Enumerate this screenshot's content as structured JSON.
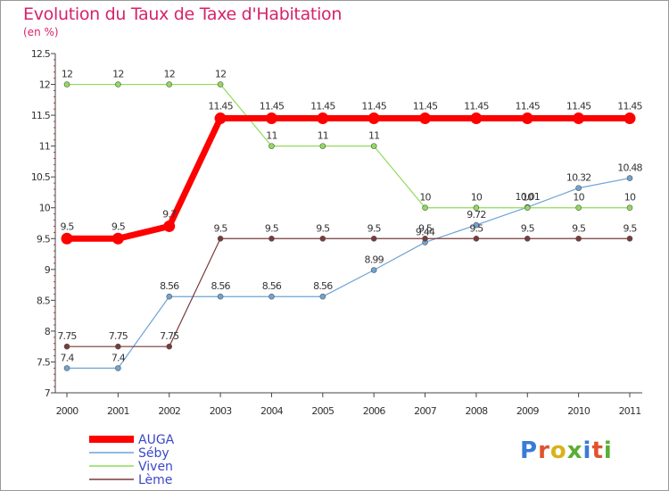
{
  "title": "Evolution du Taux de Taxe d'Habitation",
  "unit": "(en %)",
  "logo": {
    "text": "Proxiti",
    "colors": [
      "#3a7ad8",
      "#e0532d",
      "#d9b21a",
      "#5aae34",
      "#3a7ad8",
      "#e0532d",
      "#5aae34"
    ]
  },
  "chart_data": {
    "type": "line",
    "title": "Evolution du Taux de Taxe d'Habitation",
    "ylabel": "(en %)",
    "xlabel": "",
    "x": [
      "2000",
      "2001",
      "2002",
      "2003",
      "2004",
      "2005",
      "2006",
      "2007",
      "2008",
      "2009",
      "2010",
      "2011"
    ],
    "ylim": [
      7,
      12.5
    ],
    "yticks": [
      "7",
      "7.5",
      "8",
      "8.5",
      "9",
      "9.5",
      "10",
      "10.5",
      "11",
      "11.5",
      "12",
      "12.5"
    ],
    "grid": false,
    "legend": "bottom-left",
    "series": [
      {
        "name": "AUGA",
        "color": "#ff0000",
        "values": [
          9.5,
          9.5,
          9.7,
          11.45,
          11.45,
          11.45,
          11.45,
          11.45,
          11.45,
          11.45,
          11.45,
          11.45
        ],
        "labels": [
          "9.5",
          "9.5",
          "9.7",
          "11.45",
          "11.45",
          "11.45",
          "11.45",
          "11.45",
          "11.45",
          "11.45",
          "11.45",
          "11.45"
        ]
      },
      {
        "name": "Séby",
        "color": "#6fa3d3",
        "values": [
          7.4,
          7.4,
          8.56,
          8.56,
          8.56,
          8.56,
          8.99,
          9.44,
          9.72,
          10.01,
          10.32,
          10.48
        ],
        "labels": [
          "7.4",
          "7.4",
          "8.56",
          "8.56",
          "8.56",
          "8.56",
          "8.99",
          "9.44",
          "9.72",
          "10.01",
          "10.32",
          "10.48"
        ]
      },
      {
        "name": "Viven",
        "color": "#8fdc5a",
        "values": [
          12,
          12,
          12,
          12,
          11,
          11,
          11,
          10,
          10,
          10,
          10,
          10
        ],
        "labels": [
          "12",
          "12",
          "12",
          "12",
          "11",
          "11",
          "11",
          "10",
          "10",
          "10",
          "10",
          "10"
        ]
      },
      {
        "name": "Lème",
        "color": "#7a3a3a",
        "values": [
          7.75,
          7.75,
          7.75,
          9.5,
          9.5,
          9.5,
          9.5,
          9.5,
          9.5,
          9.5,
          9.5,
          9.5
        ],
        "labels": [
          "7.75",
          "7.75",
          "7.75",
          "9.5",
          "9.5",
          "9.5",
          "9.5",
          "9.5",
          "9.5",
          "9.5",
          "9.5",
          "9.5"
        ]
      }
    ]
  }
}
